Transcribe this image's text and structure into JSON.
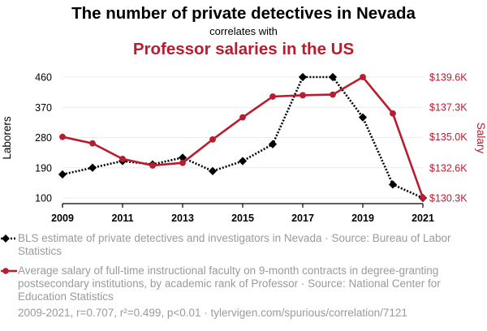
{
  "title": "The number of private detectives in Nevada",
  "connector": "correlates with",
  "subtitle": "Professor salaries in the US",
  "colors": {
    "series1": "#000000",
    "series2": "#b81c2e",
    "grid": "#ececec",
    "legend_text": "#9a9a9a"
  },
  "legend": {
    "series1": "BLS estimate of private detectives and investigators in Nevada · Source: Bureau of Labor Statistics",
    "series2": "Average salary of full-time instructional faculty on 9-month contracts in degree-granting postsecondary institutions, by academic rank of Professor · Source: National Center for Education Statistics"
  },
  "footer": "2009-2021, r=0.707, r²=0.499, p<0.01 · tylervigen.com/spurious/correlation/7121",
  "chart_data": {
    "type": "line",
    "x": [
      2009,
      2010,
      2011,
      2012,
      2013,
      2014,
      2015,
      2016,
      2017,
      2018,
      2019,
      2020,
      2021
    ],
    "x_ticks": [
      "2009",
      "2011",
      "2013",
      "2015",
      "2017",
      "2019",
      "2021"
    ],
    "xlim": [
      2009,
      2021
    ],
    "grid": true,
    "legend_position": "bottom",
    "left_axis": {
      "label": "Laborers",
      "ticks": [
        100,
        190,
        280,
        370,
        460
      ],
      "tick_labels": [
        "100",
        "190",
        "280",
        "370",
        "460"
      ],
      "ylim": [
        100,
        460
      ]
    },
    "right_axis": {
      "label": "Salary",
      "ticks": [
        130300,
        132600,
        135000,
        137300,
        139600
      ],
      "tick_labels": [
        "$130.3K",
        "$132.6K",
        "$135.0K",
        "$137.3K",
        "$139.6K"
      ],
      "ylim": [
        130300,
        139600
      ]
    },
    "series": [
      {
        "name": "BLS estimate of private detectives and investigators in Nevada",
        "axis": "left",
        "values": [
          170,
          190,
          210,
          200,
          220,
          180,
          210,
          260,
          460,
          460,
          340,
          140,
          100
        ]
      },
      {
        "name": "Average salary of full-time instructional faculty on 9-month contracts in degree-granting postsecondary institutions, by academic rank of Professor",
        "axis": "right",
        "values": [
          135000,
          134500,
          133300,
          132800,
          133000,
          134800,
          136500,
          138100,
          138200,
          138250,
          139600,
          136800,
          130300
        ]
      }
    ]
  }
}
